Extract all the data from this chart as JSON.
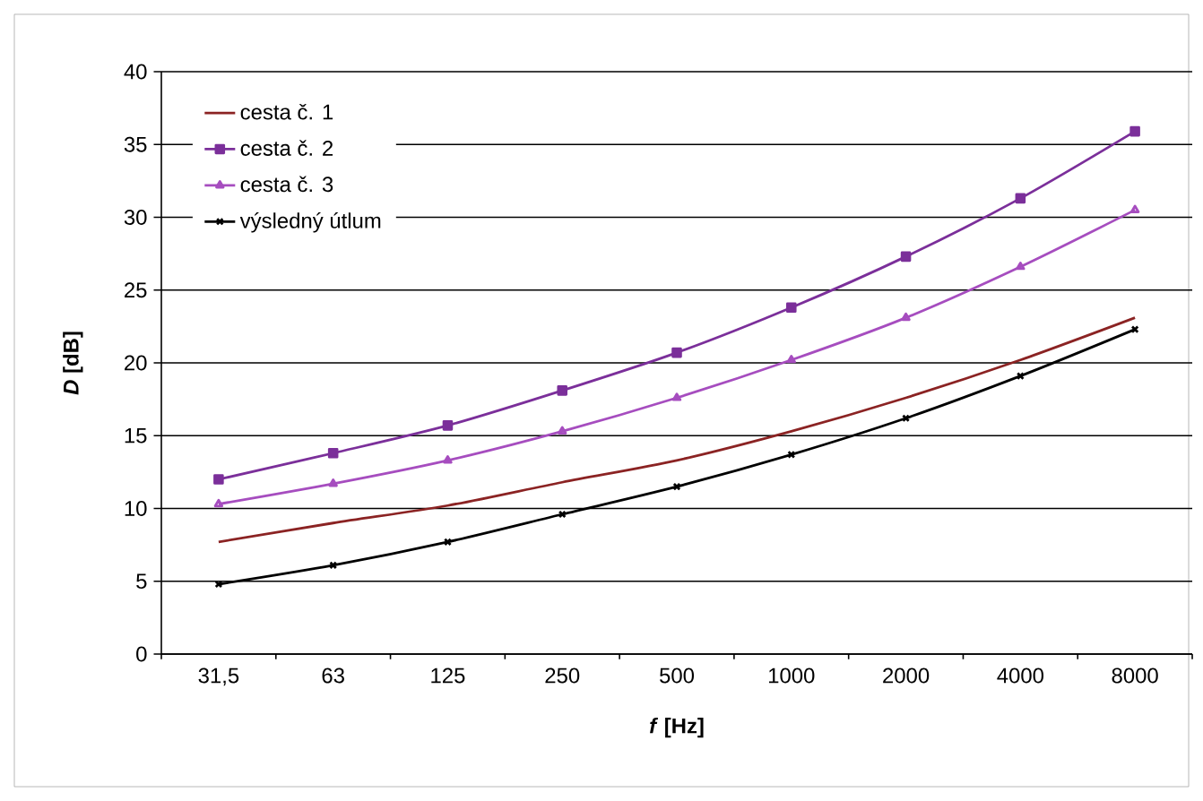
{
  "chart_data": {
    "type": "line",
    "xlabel": "*f* [Hz]",
    "ylabel": "*D* [dB]",
    "categories": [
      "31,5",
      "63",
      "125",
      "250",
      "500",
      "1000",
      "2000",
      "4000",
      "8000"
    ],
    "series": [
      {
        "name": "cesta č. 1",
        "color": "#8b2323",
        "marker": "none",
        "values": [
          7.7,
          9.0,
          10.2,
          11.8,
          13.3,
          15.3,
          17.6,
          20.2,
          23.1
        ]
      },
      {
        "name": "cesta č. 2",
        "color": "#7b2f9a",
        "marker": "square",
        "values": [
          12.0,
          13.8,
          15.7,
          18.1,
          20.7,
          23.8,
          27.3,
          31.3,
          35.9
        ]
      },
      {
        "name": "cesta č. 3",
        "color": "#a64dbf",
        "marker": "triangle",
        "values": [
          10.3,
          11.7,
          13.3,
          15.3,
          17.6,
          20.2,
          23.1,
          26.6,
          30.5
        ]
      },
      {
        "name": "výsledný útlum",
        "color": "#000000",
        "marker": "cross",
        "values": [
          4.8,
          6.1,
          7.7,
          9.6,
          11.5,
          13.7,
          16.2,
          19.1,
          22.3
        ]
      }
    ],
    "ylim": [
      0,
      40
    ],
    "yticks": [
      0,
      5,
      10,
      15,
      20,
      25,
      30,
      35,
      40
    ],
    "grid": "y",
    "legend": "top left"
  }
}
